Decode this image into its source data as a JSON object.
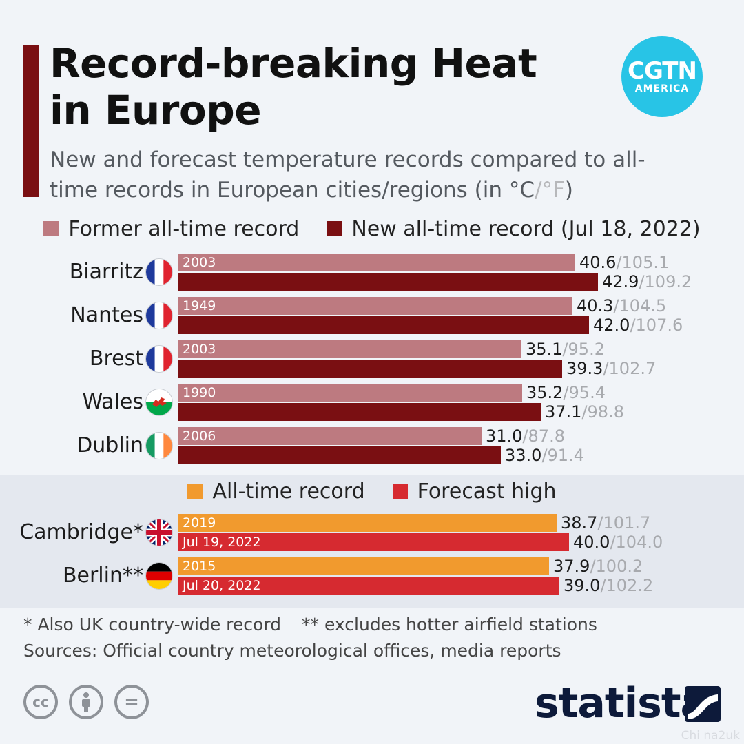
{
  "header": {
    "title": "Record-breaking Heat in Europe",
    "subtitle_main": "New and forecast temperature records compared to all-time records in European cities/regions (in °C",
    "subtitle_sep": "/",
    "subtitle_f": "°F",
    "subtitle_end": ")",
    "logo_line1": "CGTN",
    "logo_line2": "AMERICA"
  },
  "legend_records": [
    {
      "label": "Former all-time record",
      "color": "#bd7a80"
    },
    {
      "label": "New all-time record (Jul 18, 2022)",
      "color": "#7a0f12"
    }
  ],
  "legend_forecast": [
    {
      "label": "All-time record",
      "color": "#f19a2e"
    },
    {
      "label": "Forecast high",
      "color": "#d62a30"
    }
  ],
  "chart_data": [
    {
      "type": "bar",
      "orientation": "horizontal",
      "categories": [
        "Biarritz",
        "Nantes",
        "Brest",
        "Wales",
        "Dublin"
      ],
      "flags": [
        "france-flag-icon",
        "france-flag-icon",
        "france-flag-icon",
        "wales-flag-icon",
        "ireland-flag-icon"
      ],
      "series": [
        {
          "name": "Former all-time record",
          "color": "#bd7a80",
          "values_c": [
            40.6,
            40.3,
            35.1,
            35.2,
            31.0
          ],
          "labels_c": [
            "40.6",
            "40.3",
            "35.1",
            "35.2",
            "31.0"
          ],
          "labels_f": [
            "105.1",
            "104.5",
            "95.2",
            "95.4",
            "87.8"
          ],
          "tags": [
            "2003",
            "1949",
            "2003",
            "1990",
            "2006"
          ]
        },
        {
          "name": "New all-time record (Jul 18, 2022)",
          "color": "#7a0f12",
          "values_c": [
            42.9,
            42.0,
            39.3,
            37.1,
            33.0
          ],
          "labels_c": [
            "42.9",
            "42.0",
            "39.3",
            "37.1",
            "33.0"
          ],
          "labels_f": [
            "109.2",
            "107.6",
            "102.7",
            "98.8",
            "91.4"
          ],
          "tags": [
            "",
            "",
            "",
            "",
            ""
          ]
        }
      ]
    },
    {
      "type": "bar",
      "orientation": "horizontal",
      "categories": [
        "Cambridge*",
        "Berlin**"
      ],
      "flags": [
        "uk-flag-icon",
        "germany-flag-icon"
      ],
      "series": [
        {
          "name": "All-time record",
          "color": "#f19a2e",
          "values_c": [
            38.7,
            37.9
          ],
          "labels_c": [
            "38.7",
            "37.9"
          ],
          "labels_f": [
            "101.7",
            "100.2"
          ],
          "tags": [
            "2019",
            "2015"
          ]
        },
        {
          "name": "Forecast high",
          "color": "#d62a30",
          "values_c": [
            40.0,
            39.0
          ],
          "labels_c": [
            "40.0",
            "39.0"
          ],
          "labels_f": [
            "104.0",
            "102.2"
          ],
          "tags": [
            "Jul 19, 2022",
            "Jul 20, 2022"
          ]
        }
      ]
    }
  ],
  "value_separator": "/",
  "footer": {
    "note1": "* Also UK country-wide record",
    "note2": "** excludes hotter airfield stations",
    "sources": "Sources: Official country meteorological offices, media reports",
    "license_icons": [
      "cc-icon",
      "attribution-icon",
      "no-derivatives-icon"
    ],
    "license_cc": "cc",
    "license_eq": "=",
    "brand": "statista",
    "watermark": "Chi na2uk"
  }
}
